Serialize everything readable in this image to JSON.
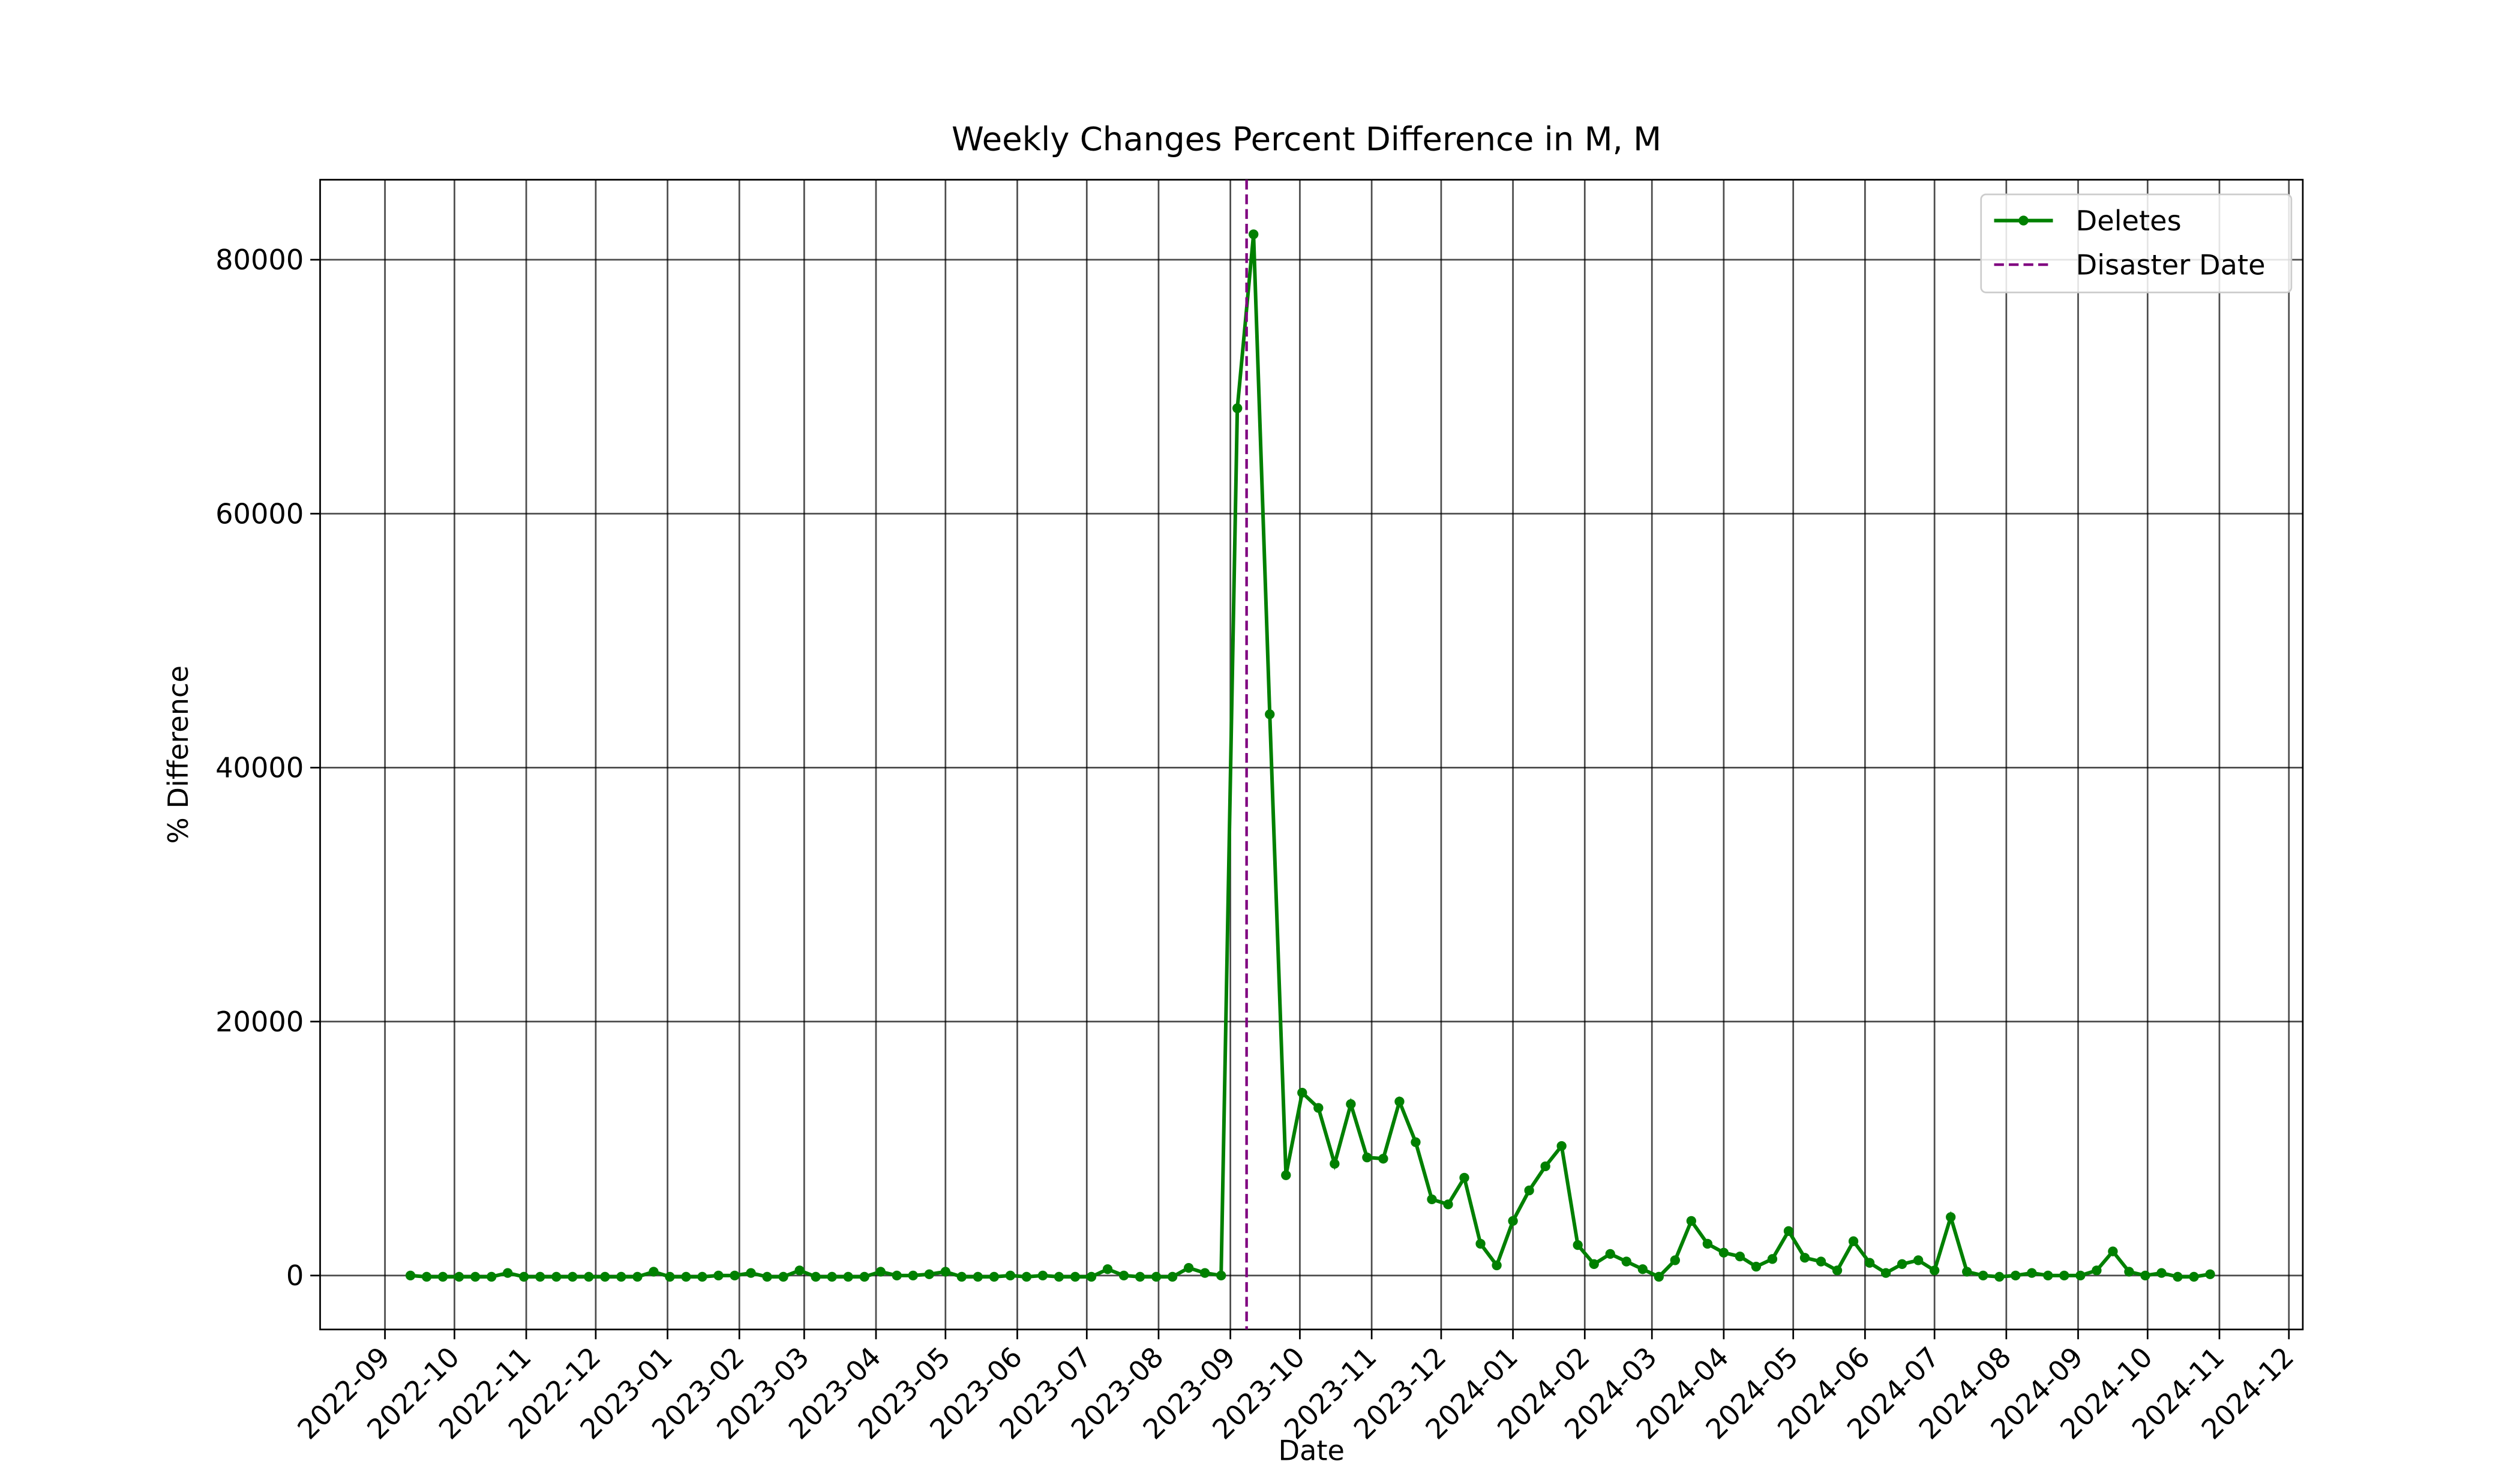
{
  "chart_data": {
    "type": "line",
    "title": "Weekly Changes Percent Difference in M, M",
    "xlabel": "Date",
    "ylabel": "% Difference",
    "x": [
      "2022-09-12",
      "2022-09-19",
      "2022-09-26",
      "2022-10-03",
      "2022-10-10",
      "2022-10-17",
      "2022-10-24",
      "2022-10-31",
      "2022-11-07",
      "2022-11-14",
      "2022-11-21",
      "2022-11-28",
      "2022-12-05",
      "2022-12-12",
      "2022-12-19",
      "2022-12-26",
      "2023-01-02",
      "2023-01-09",
      "2023-01-16",
      "2023-01-23",
      "2023-01-30",
      "2023-02-06",
      "2023-02-13",
      "2023-02-20",
      "2023-02-27",
      "2023-03-06",
      "2023-03-13",
      "2023-03-20",
      "2023-03-27",
      "2023-04-03",
      "2023-04-10",
      "2023-04-17",
      "2023-04-24",
      "2023-05-01",
      "2023-05-08",
      "2023-05-15",
      "2023-05-22",
      "2023-05-29",
      "2023-06-05",
      "2023-06-12",
      "2023-06-19",
      "2023-06-26",
      "2023-07-03",
      "2023-07-10",
      "2023-07-17",
      "2023-07-24",
      "2023-07-31",
      "2023-08-07",
      "2023-08-14",
      "2023-08-21",
      "2023-08-28",
      "2023-09-04",
      "2023-09-11",
      "2023-09-18",
      "2023-09-25",
      "2023-10-02",
      "2023-10-09",
      "2023-10-16",
      "2023-10-23",
      "2023-10-30",
      "2023-11-06",
      "2023-11-13",
      "2023-11-20",
      "2023-11-27",
      "2023-12-04",
      "2023-12-11",
      "2023-12-18",
      "2023-12-25",
      "2024-01-01",
      "2024-01-08",
      "2024-01-15",
      "2024-01-22",
      "2024-01-29",
      "2024-02-05",
      "2024-02-12",
      "2024-02-19",
      "2024-02-26",
      "2024-03-04",
      "2024-03-11",
      "2024-03-18",
      "2024-03-25",
      "2024-04-01",
      "2024-04-08",
      "2024-04-15",
      "2024-04-22",
      "2024-04-29",
      "2024-05-06",
      "2024-05-13",
      "2024-05-20",
      "2024-05-27",
      "2024-06-03",
      "2024-06-10",
      "2024-06-17",
      "2024-06-24",
      "2024-07-01",
      "2024-07-08",
      "2024-07-15",
      "2024-07-22",
      "2024-07-29",
      "2024-08-05",
      "2024-08-12",
      "2024-08-19",
      "2024-08-26",
      "2024-09-02",
      "2024-09-09",
      "2024-09-16",
      "2024-09-23",
      "2024-09-30",
      "2024-10-07",
      "2024-10-14",
      "2024-10-21",
      "2024-10-28"
    ],
    "series": [
      {
        "name": "Deletes",
        "color": "#008000",
        "values": [
          0,
          -100,
          -100,
          -100,
          -100,
          -100,
          200,
          -100,
          -100,
          -100,
          -100,
          -100,
          -100,
          -100,
          -100,
          300,
          -100,
          -100,
          -100,
          0,
          0,
          200,
          -100,
          -100,
          400,
          -100,
          -100,
          -100,
          -100,
          300,
          0,
          0,
          100,
          300,
          -100,
          -100,
          -100,
          0,
          -100,
          0,
          -100,
          -100,
          -100,
          500,
          0,
          -100,
          -100,
          -100,
          600,
          200,
          0,
          68300,
          82000,
          44200,
          7900,
          14400,
          13200,
          8800,
          13500,
          9300,
          9200,
          13700,
          10500,
          6000,
          5600,
          7700,
          2500,
          800,
          4300,
          6700,
          8600,
          10200,
          2400,
          900,
          1700,
          1100,
          500,
          -100,
          1200,
          4300,
          2500,
          1800,
          1500,
          700,
          1300,
          3500,
          1400,
          1100,
          400,
          2700,
          1000,
          200,
          900,
          1200,
          400,
          4600,
          300,
          0,
          -100,
          0,
          200,
          0,
          0,
          0,
          400,
          1900,
          300,
          0,
          200,
          -100,
          -100,
          100
        ]
      }
    ],
    "vline": {
      "name": "Disaster Date",
      "x": "2023-09-08",
      "color": "#800080"
    },
    "xlim": [
      "2022-08-04",
      "2024-12-07"
    ],
    "xticks": [
      "2022-09",
      "2022-10",
      "2022-11",
      "2022-12",
      "2023-01",
      "2023-02",
      "2023-03",
      "2023-04",
      "2023-05",
      "2023-06",
      "2023-07",
      "2023-08",
      "2023-09",
      "2023-10",
      "2023-11",
      "2023-12",
      "2024-01",
      "2024-02",
      "2024-03",
      "2024-04",
      "2024-05",
      "2024-06",
      "2024-07",
      "2024-08",
      "2024-09",
      "2024-10",
      "2024-11",
      "2024-12"
    ],
    "ylim": [
      -4250,
      86300
    ],
    "yticks": [
      0,
      20000,
      40000,
      60000,
      80000
    ],
    "grid": true,
    "legend": "upper right"
  }
}
